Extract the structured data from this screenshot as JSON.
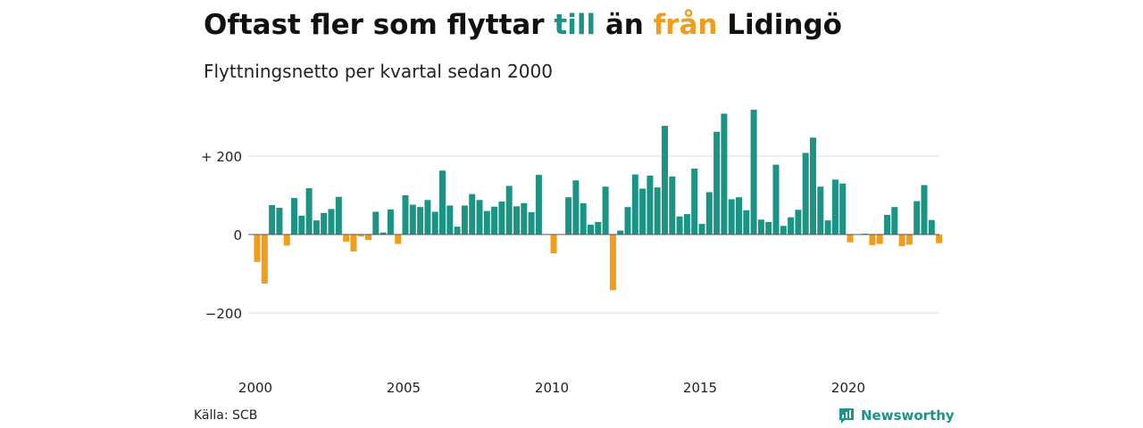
{
  "title": {
    "part1": "Oftast fler som flyttar ",
    "to": "till",
    "part2": " än ",
    "from": "från",
    "part3": " Lidingö"
  },
  "subtitle": "Flyttningsnetto per kvartal sedan 2000",
  "source": "Källa: SCB",
  "brand": {
    "name": "Newsworthy",
    "icon": "newsworthy-logo-icon"
  },
  "colors": {
    "positive": "#1b9385",
    "negative": "#f29c1b",
    "grid": "#dddddd",
    "zero": "#555555"
  },
  "chart_data": {
    "type": "bar",
    "x_start": "2000 Q1",
    "frequency": "quarterly",
    "values": [
      -70,
      -125,
      75,
      68,
      -28,
      93,
      48,
      118,
      36,
      55,
      65,
      96,
      -18,
      -43,
      -5,
      -14,
      58,
      5,
      64,
      -24,
      100,
      76,
      70,
      88,
      58,
      163,
      74,
      20,
      74,
      103,
      88,
      60,
      71,
      84,
      124,
      72,
      80,
      57,
      152,
      0,
      -48,
      0,
      95,
      138,
      80,
      25,
      32,
      122,
      -142,
      10,
      70,
      153,
      117,
      150,
      120,
      277,
      148,
      46,
      52,
      168,
      27,
      108,
      262,
      308,
      90,
      95,
      62,
      318,
      38,
      32,
      178,
      22,
      44,
      63,
      208,
      247,
      122,
      36,
      140,
      130,
      -20,
      0,
      2,
      -27,
      -24,
      50,
      70,
      -30,
      -26,
      85,
      126,
      37,
      -22
    ],
    "y_ticks": [
      {
        "value": 200,
        "label": "+ 200"
      },
      {
        "value": 0,
        "label": "0"
      },
      {
        "value": -200,
        "label": "−200"
      }
    ],
    "x_ticks": [
      {
        "label": "2000",
        "quarter_index": 0
      },
      {
        "label": "2005",
        "quarter_index": 20
      },
      {
        "label": "2010",
        "quarter_index": 40
      },
      {
        "label": "2015",
        "quarter_index": 60
      },
      {
        "label": "2020",
        "quarter_index": 80
      }
    ],
    "ylim": [
      -300,
      330
    ],
    "grid": true,
    "legend": "none",
    "xlabel": "",
    "ylabel": ""
  }
}
